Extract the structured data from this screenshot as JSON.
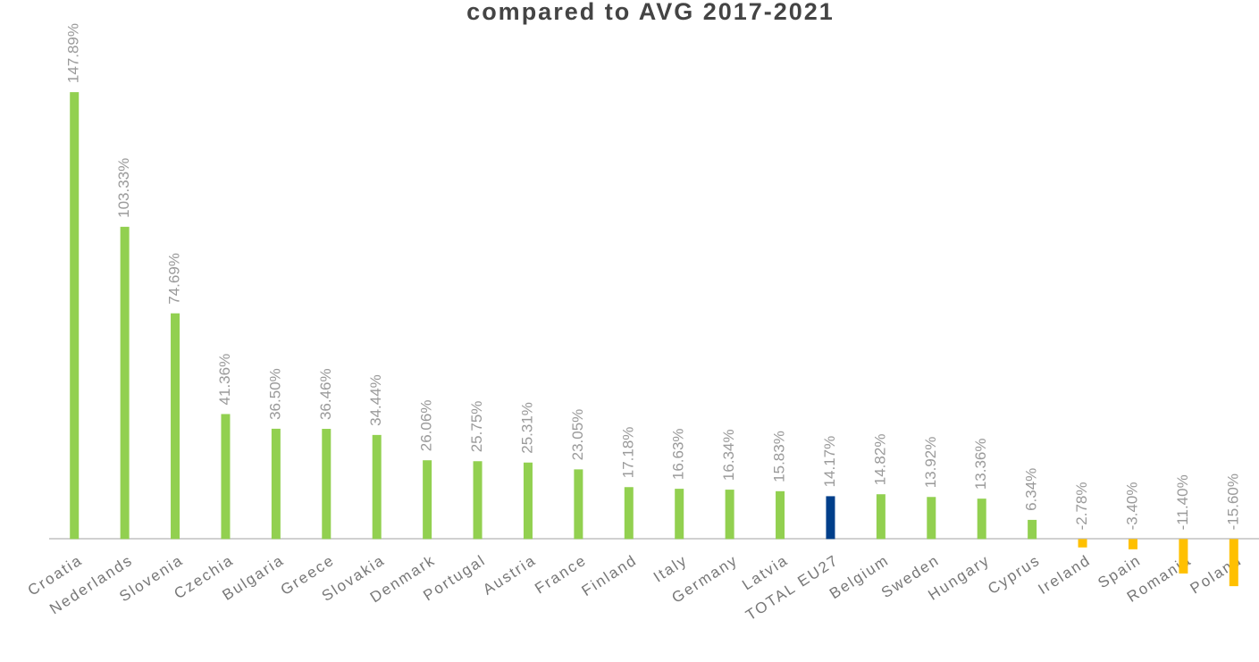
{
  "chart_data": {
    "type": "bar",
    "title": "compared to AVG 2017-2021",
    "categories": [
      "Croatia",
      "Nederlands",
      "Slovenia",
      "Czechia",
      "Bulgaria",
      "Greece",
      "Slovakia",
      "Denmark",
      "Portugal",
      "Austria",
      "France",
      "Finland",
      "Italy",
      "Germany",
      "Latvia",
      "TOTAL EU27",
      "Belgium",
      "Sweden",
      "Hungary",
      "Cyprus",
      "Ireland",
      "Spain",
      "Romania",
      "Poland"
    ],
    "values": [
      147.89,
      103.33,
      74.69,
      41.36,
      36.5,
      36.46,
      34.44,
      26.06,
      25.75,
      25.31,
      23.05,
      17.18,
      16.63,
      16.34,
      15.83,
      14.17,
      14.82,
      13.92,
      13.36,
      6.34,
      -2.78,
      -3.4,
      -11.4,
      -15.6
    ],
    "value_labels": [
      "147.89%",
      "103.33%",
      "74.69%",
      "41.36%",
      "36.50%",
      "36.46%",
      "34.44%",
      "26.06%",
      "25.75%",
      "25.31%",
      "23.05%",
      "17.18%",
      "16.63%",
      "16.34%",
      "15.83%",
      "14.17%",
      "14.82%",
      "13.92%",
      "13.36%",
      "6.34%",
      "-2.78%",
      "-3.40%",
      "-11.40%",
      "-15.60%"
    ],
    "colors": [
      "#92d050",
      "#92d050",
      "#92d050",
      "#92d050",
      "#92d050",
      "#92d050",
      "#92d050",
      "#92d050",
      "#92d050",
      "#92d050",
      "#92d050",
      "#92d050",
      "#92d050",
      "#92d050",
      "#92d050",
      "#003f8a",
      "#92d050",
      "#92d050",
      "#92d050",
      "#92d050",
      "#ffc000",
      "#ffc000",
      "#ffc000",
      "#ffc000"
    ],
    "ylim": [
      -20,
      150
    ]
  }
}
